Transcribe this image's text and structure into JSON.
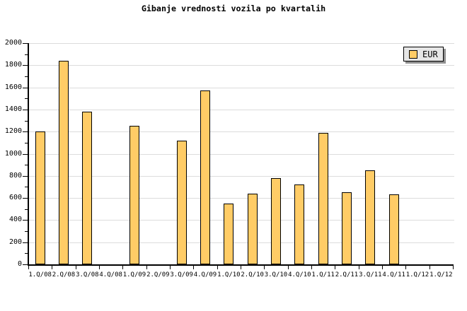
{
  "legend": {
    "label": "EUR",
    "swatch_color": "#FFCC66"
  },
  "colors": {
    "background": "#FFFFFF",
    "bar_fill": "#FFCC66",
    "bar_border": "#000000",
    "grid": "#DCDCDC",
    "axis": "#000000",
    "text": "#000000",
    "legend_bg": "#E6E6E6",
    "legend_shadow": "#909090"
  },
  "chart_data": {
    "type": "bar",
    "title": "Gibanje vrednosti vozila po kvartalih",
    "categories": [
      "1.Q/08",
      "2.Q/08",
      "3.Q/08",
      "4.Q/08",
      "1.Q/09",
      "2.Q/09",
      "3.Q/09",
      "4.Q/09",
      "1.Q/10",
      "2.Q/10",
      "3.Q/10",
      "4.Q/10",
      "1.Q/11",
      "2.Q/11",
      "3.Q/11",
      "4.Q/11",
      "1.Q/12",
      "1.Q/12"
    ],
    "series": [
      {
        "name": "EUR",
        "values": [
          1200,
          1840,
          1380,
          null,
          1250,
          null,
          1120,
          1570,
          550,
          640,
          780,
          720,
          1190,
          650,
          850,
          630,
          null,
          null
        ]
      }
    ],
    "xlabel": "",
    "ylabel": "",
    "ylim": [
      0,
      2000
    ],
    "ytick_step": 200,
    "y_minor_tick_step": 100,
    "grid": true,
    "legend_position": "top-right"
  }
}
